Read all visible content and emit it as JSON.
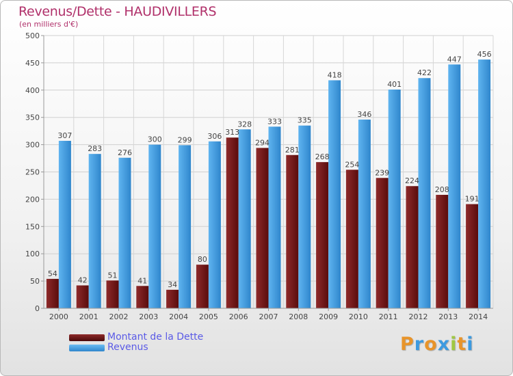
{
  "chart_data": {
    "type": "bar",
    "title": "Revenus/Dette - HAUDIVILLERS",
    "subtitle": "(en milliers d'€)",
    "categories": [
      "2000",
      "2001",
      "2002",
      "2003",
      "2004",
      "2005",
      "2006",
      "2007",
      "2008",
      "2009",
      "2010",
      "2011",
      "2012",
      "2013",
      "2014"
    ],
    "series": [
      {
        "name": "Montant de la Dette",
        "color": "#7a1a1a",
        "values": [
          54,
          42,
          51,
          41,
          34,
          80,
          313,
          294,
          281,
          268,
          254,
          239,
          224,
          208,
          191
        ]
      },
      {
        "name": "Revenus",
        "color": "#3c9ae0",
        "values": [
          307,
          283,
          276,
          300,
          299,
          306,
          328,
          333,
          335,
          418,
          346,
          401,
          422,
          447,
          456
        ]
      }
    ],
    "ylim": [
      0,
      500
    ],
    "yticks": [
      0,
      50,
      100,
      150,
      200,
      250,
      300,
      350,
      400,
      450,
      500
    ],
    "grid": true,
    "legend_position": "bottom-left"
  },
  "brand": {
    "letters": [
      "P",
      "r",
      "o",
      "x",
      "i",
      "t",
      "i"
    ],
    "colors": [
      "#e8942a",
      "#3c9ae0",
      "#e8942a",
      "#3c9ae0",
      "#a0c842",
      "#e8942a",
      "#3c9ae0"
    ]
  }
}
